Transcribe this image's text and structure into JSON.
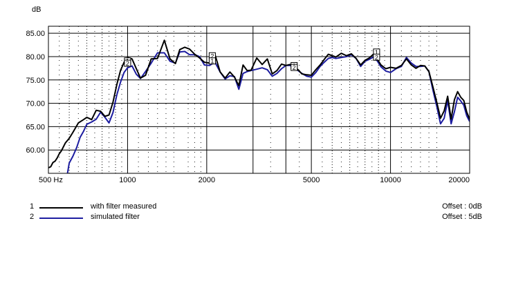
{
  "chart_data": {
    "type": "line",
    "ylabel": "dB",
    "x_scale": "log",
    "xlim": [
      500,
      20000
    ],
    "ylim": [
      55,
      86.5
    ],
    "grid": true,
    "y_ticks": [
      60,
      65,
      70,
      75,
      80,
      85
    ],
    "y_tick_labels": [
      "60.00",
      "65.00",
      "70.00",
      "75.00",
      "80.00",
      "85.00"
    ],
    "x_ticks": [
      500,
      1000,
      2000,
      5000,
      10000,
      20000
    ],
    "x_tick_labels": [
      "500 Hz",
      "1000",
      "2000",
      "5000",
      "10000",
      "20000"
    ],
    "series": [
      {
        "id": "1",
        "name": "with filter measured",
        "color": "#000000",
        "offset": "Offset : 0dB",
        "x": [
          500,
          510,
          520,
          530,
          540,
          550,
          560,
          580,
          600,
          620,
          650,
          680,
          700,
          730,
          760,
          790,
          820,
          850,
          880,
          910,
          940,
          970,
          1000,
          1040,
          1080,
          1120,
          1170,
          1230,
          1300,
          1380,
          1450,
          1520,
          1580,
          1650,
          1720,
          1800,
          1880,
          1960,
          2050,
          2150,
          2250,
          2350,
          2450,
          2550,
          2650,
          2750,
          2850,
          2950,
          3100,
          3250,
          3400,
          3550,
          3700,
          3850,
          4000,
          4150,
          4300,
          4450,
          4600,
          4800,
          5000,
          5200,
          5400,
          5600,
          5800,
          6000,
          6200,
          6500,
          6800,
          7100,
          7400,
          7700,
          8000,
          8300,
          8600,
          8900,
          9200,
          9600,
          10000,
          10500,
          11000,
          11500,
          12000,
          12500,
          13000,
          13500,
          14000,
          14500,
          15000,
          15500,
          16000,
          16500,
          17000,
          17500,
          18000,
          18500,
          19000,
          19500,
          20000
        ],
        "values": [
          56.2,
          56.4,
          57.3,
          57.6,
          58.3,
          59.2,
          59.8,
          61.5,
          62.5,
          63.8,
          65.8,
          66.5,
          67,
          66.5,
          68.5,
          68.3,
          67.2,
          67.5,
          70.2,
          74,
          77,
          78.8,
          79.8,
          79.5,
          77.4,
          75.4,
          76,
          79.5,
          79.6,
          83.5,
          79.5,
          78.5,
          81.5,
          82,
          81.6,
          80.5,
          79.7,
          78.8,
          78.6,
          80.4,
          76.7,
          75.4,
          76.7,
          75.6,
          73.8,
          78.2,
          77,
          77.1,
          79.7,
          78.3,
          79.5,
          76.3,
          77,
          78.4,
          78.1,
          78.3,
          77.8,
          77.2,
          76.3,
          76.1,
          76,
          77.2,
          78.2,
          79.4,
          80.5,
          80.2,
          79.9,
          80.7,
          80.2,
          80.6,
          79.6,
          78.2,
          79.2,
          79.7,
          80.5,
          79.5,
          78.2,
          77.4,
          77.7,
          77.5,
          78.1,
          79.5,
          78.2,
          77.5,
          78.1,
          78,
          76.8,
          73.5,
          70.2,
          66.8,
          68.4,
          71.5,
          66.6,
          70.8,
          72.5,
          71.3,
          70.6,
          68.1,
          66.6
        ]
      },
      {
        "id": "2",
        "name": "simulated filter",
        "color": "#1c1ca0",
        "offset": "Offset : 5dB",
        "x": [
          590,
          600,
          620,
          640,
          660,
          680,
          700,
          730,
          760,
          790,
          820,
          850,
          880,
          910,
          940,
          970,
          1000,
          1040,
          1080,
          1120,
          1170,
          1230,
          1300,
          1380,
          1450,
          1520,
          1580,
          1650,
          1720,
          1800,
          1880,
          1960,
          2050,
          2150,
          2250,
          2350,
          2450,
          2550,
          2650,
          2750,
          2850,
          2950,
          3100,
          3250,
          3400,
          3550,
          3700,
          3850,
          4000,
          4150,
          4300,
          4450,
          4600,
          4800,
          5000,
          5200,
          5400,
          5600,
          5800,
          6000,
          6200,
          6500,
          6800,
          7100,
          7400,
          7700,
          8000,
          8300,
          8600,
          8900,
          9200,
          9600,
          10000,
          10500,
          11000,
          11500,
          12000,
          12500,
          13000,
          13500,
          14000,
          14500,
          15000,
          15500,
          16000,
          16500,
          17000,
          17500,
          18000,
          18500,
          19000,
          19500,
          20000
        ],
        "values": [
          54.8,
          57.2,
          58.7,
          60.5,
          62.7,
          64,
          65.5,
          66,
          66.6,
          68.1,
          67,
          65.8,
          68,
          71.8,
          74.5,
          76.6,
          77.6,
          78,
          76.2,
          75.3,
          76.8,
          78.6,
          80.8,
          80.8,
          79,
          78.6,
          81,
          81.1,
          80.4,
          80.4,
          80,
          78.2,
          78.1,
          78.8,
          76.7,
          75.2,
          75.9,
          75.7,
          73,
          76.4,
          76.8,
          77,
          77.3,
          77.6,
          77.2,
          75.8,
          76.4,
          77.4,
          78.1,
          78.1,
          77.6,
          77,
          76.4,
          75.8,
          75.6,
          76.6,
          77.9,
          78.8,
          79.6,
          79.8,
          79.6,
          79.8,
          80,
          80.4,
          79.6,
          77.9,
          79,
          79.4,
          79.9,
          79.1,
          77.8,
          76.9,
          76.6,
          77.4,
          77.9,
          79.8,
          78.6,
          77.9,
          77.9,
          78,
          76.8,
          72.8,
          69.3,
          65.6,
          66.8,
          70.6,
          65.6,
          68.2,
          71.3,
          70.5,
          69.6,
          67.3,
          66.1
        ]
      }
    ],
    "markers": [
      {
        "series": "1",
        "x": 1000,
        "y": 79.0,
        "label": "1"
      },
      {
        "series": "2",
        "x": 1000,
        "y": 78.5,
        "label": "2"
      },
      {
        "series": "2",
        "x": 2100,
        "y": 80.1,
        "label": "2"
      },
      {
        "series": "1",
        "x": 2100,
        "y": 79.0,
        "label": "1"
      },
      {
        "series": "1",
        "x": 4300,
        "y": 78.0,
        "label": "1"
      },
      {
        "series": "2",
        "x": 4300,
        "y": 77.6,
        "label": "2"
      },
      {
        "series": "1",
        "x": 8850,
        "y": 80.9,
        "label": "1"
      },
      {
        "series": "2",
        "x": 8850,
        "y": 79.8,
        "label": "2"
      }
    ]
  }
}
